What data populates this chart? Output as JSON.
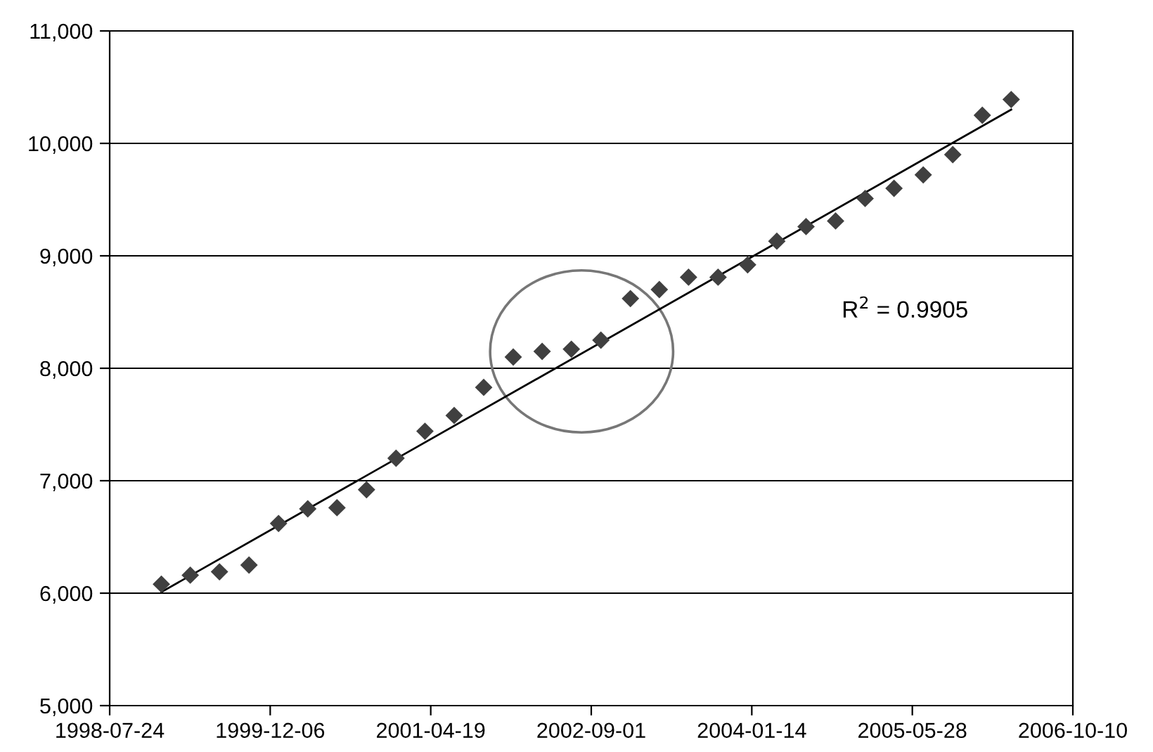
{
  "chart_data": {
    "type": "scatter",
    "grid": "y",
    "legend": false,
    "x": [
      "1999-01-01",
      "1999-04-01",
      "1999-07-01",
      "1999-10-01",
      "2000-01-01",
      "2000-04-01",
      "2000-07-01",
      "2000-10-01",
      "2001-01-01",
      "2001-04-01",
      "2001-07-01",
      "2001-10-01",
      "2002-01-01",
      "2002-04-01",
      "2002-07-01",
      "2002-10-01",
      "2003-01-01",
      "2003-04-01",
      "2003-07-01",
      "2003-10-01",
      "2004-01-01",
      "2004-04-01",
      "2004-07-01",
      "2004-10-01",
      "2005-01-01",
      "2005-04-01",
      "2005-07-01",
      "2005-10-01",
      "2006-01-01",
      "2006-04-01"
    ],
    "series": [
      {
        "color": "#404040",
        "marker": "diamond",
        "values": [
          6080,
          6160,
          6190,
          6250,
          6620,
          6750,
          6760,
          6920,
          7200,
          7440,
          7580,
          7830,
          8100,
          8150,
          8170,
          8250,
          8620,
          8700,
          8810,
          8810,
          8920,
          9130,
          9260,
          9310,
          9510,
          9600,
          9720,
          9900,
          10250,
          10390
        ]
      },
      {
        "type": "line",
        "marker": "none",
        "color": "#000000",
        "x": [
          "1999-01-01",
          "2006-04-01"
        ],
        "values": [
          6010,
          10300
        ]
      }
    ],
    "xlim": [
      "1998-07-24",
      "2006-10-10"
    ],
    "xticks": [
      "1998-07-24",
      "1999-12-06",
      "2001-04-19",
      "2002-09-01",
      "2004-01-14",
      "2005-05-28",
      "2006-10-10"
    ],
    "ylim": [
      5000,
      11000
    ],
    "yticks": [
      {
        "value": 5000,
        "label": "5,000"
      },
      {
        "value": 6000,
        "label": "6,000"
      },
      {
        "value": 7000,
        "label": "7,000"
      },
      {
        "value": 8000,
        "label": "8,000"
      },
      {
        "value": 9000,
        "label": "9,000"
      },
      {
        "value": 10000,
        "label": "10,000"
      },
      {
        "value": 11000,
        "label": "11,000"
      }
    ],
    "annotations": [
      "R$^{2}$ = 0.9905"
    ]
  }
}
